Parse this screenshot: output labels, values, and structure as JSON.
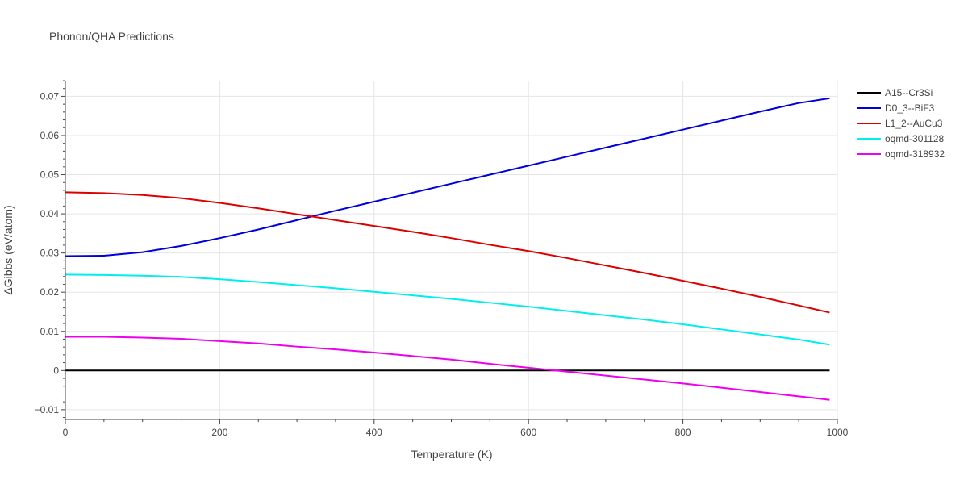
{
  "chart_data": {
    "type": "line",
    "title": "Phonon/QHA Predictions",
    "xlabel": "Temperature (K)",
    "ylabel": "ΔGibbs (eV/atom)",
    "xlim": [
      0,
      1000
    ],
    "ylim": [
      -0.0125,
      0.074
    ],
    "xticks": [
      0,
      200,
      400,
      600,
      800,
      1000
    ],
    "xtick_labels": [
      "0",
      "200",
      "400",
      "600",
      "800",
      "1000"
    ],
    "yticks": [
      -0.01,
      0,
      0.01,
      0.02,
      0.03,
      0.04,
      0.05,
      0.06,
      0.07
    ],
    "ytick_labels": [
      "−0.01",
      "0",
      "0.01",
      "0.02",
      "0.03",
      "0.04",
      "0.05",
      "0.06",
      "0.07"
    ],
    "grid": true,
    "legend_position": "top-right-outside",
    "series": [
      {
        "name": "A15--Cr3Si",
        "color": "#000000",
        "x": [
          0,
          990
        ],
        "y": [
          0,
          0
        ]
      },
      {
        "name": "D0_3--BiF3",
        "color": "#0000dd",
        "x": [
          0,
          50,
          100,
          150,
          200,
          250,
          300,
          350,
          400,
          450,
          500,
          550,
          600,
          650,
          700,
          750,
          800,
          850,
          900,
          950,
          990
        ],
        "y": [
          0.0292,
          0.0293,
          0.0302,
          0.0318,
          0.0338,
          0.036,
          0.0384,
          0.0408,
          0.0431,
          0.0454,
          0.0477,
          0.05,
          0.0523,
          0.0546,
          0.0569,
          0.0592,
          0.0615,
          0.0638,
          0.0661,
          0.0683,
          0.0695
        ]
      },
      {
        "name": "L1_2--AuCu3",
        "color": "#dd0000",
        "x": [
          0,
          50,
          100,
          150,
          200,
          250,
          300,
          350,
          400,
          450,
          500,
          550,
          600,
          650,
          700,
          750,
          800,
          850,
          900,
          950,
          990
        ],
        "y": [
          0.0455,
          0.0453,
          0.0448,
          0.044,
          0.0428,
          0.0414,
          0.0399,
          0.0384,
          0.0369,
          0.0354,
          0.0338,
          0.0321,
          0.0305,
          0.0287,
          0.0268,
          0.0249,
          0.0229,
          0.0209,
          0.0188,
          0.0166,
          0.0148
        ]
      },
      {
        "name": "oqmd-301128",
        "color": "#00eeee",
        "x": [
          0,
          50,
          100,
          150,
          200,
          250,
          300,
          350,
          400,
          450,
          500,
          550,
          600,
          650,
          700,
          750,
          800,
          850,
          900,
          950,
          990
        ],
        "y": [
          0.0245,
          0.0244,
          0.0242,
          0.0239,
          0.0233,
          0.0226,
          0.0218,
          0.021,
          0.0201,
          0.0192,
          0.0183,
          0.0173,
          0.0163,
          0.0152,
          0.0141,
          0.013,
          0.0118,
          0.0105,
          0.0092,
          0.0079,
          0.0066
        ]
      },
      {
        "name": "oqmd-318932",
        "color": "#ee00ee",
        "x": [
          0,
          50,
          100,
          150,
          200,
          250,
          300,
          350,
          400,
          450,
          500,
          550,
          600,
          650,
          700,
          750,
          800,
          850,
          900,
          950,
          990
        ],
        "y": [
          0.0086,
          0.0086,
          0.0084,
          0.0081,
          0.0075,
          0.0069,
          0.0061,
          0.0054,
          0.0046,
          0.0037,
          0.0028,
          0.0017,
          0.0007,
          -0.0003,
          -0.0013,
          -0.0023,
          -0.0033,
          -0.0044,
          -0.0055,
          -0.0066,
          -0.0075
        ]
      }
    ]
  }
}
